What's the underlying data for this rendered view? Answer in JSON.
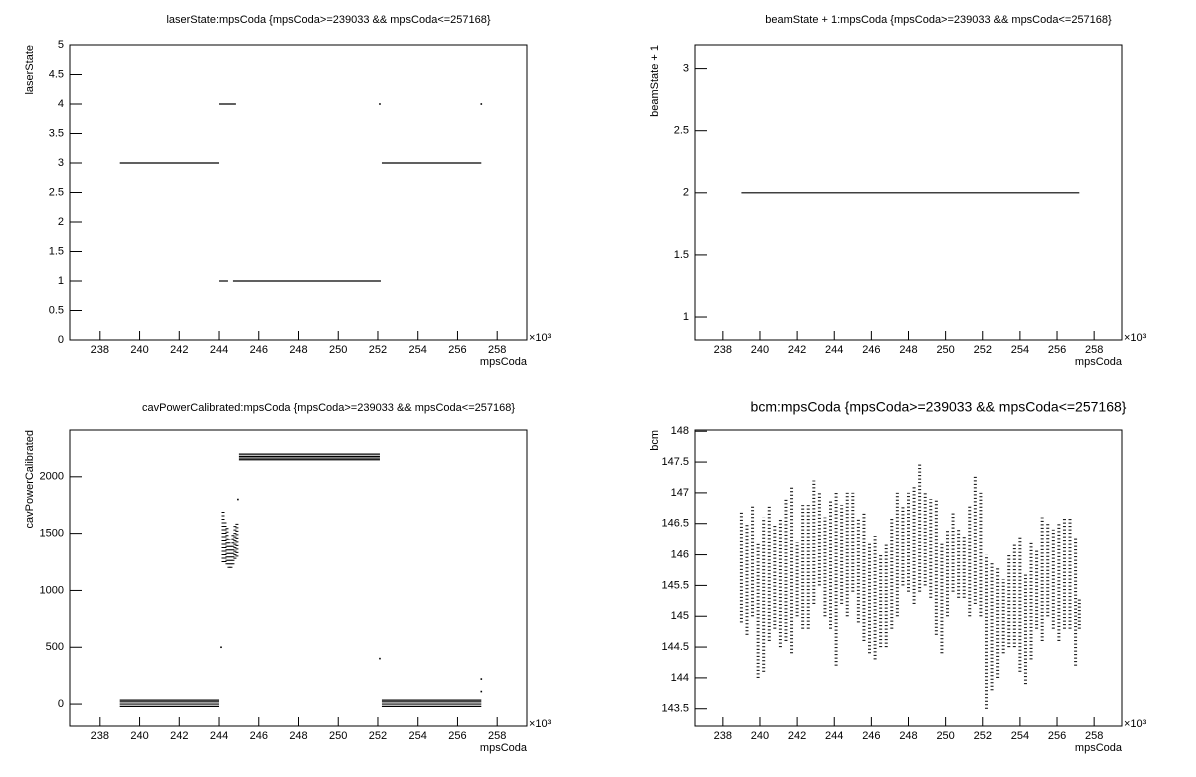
{
  "chart_data": [
    {
      "type": "scatter",
      "title": "laserState:mpsCoda {mpsCoda>=239033 && mpsCoda<=257168}",
      "x_label": "mpsCoda",
      "y_label": "laserState",
      "x_multiplier": "×10³",
      "color": "#000000",
      "xlim": [
        236.5,
        259.5
      ],
      "xticks": [
        238,
        240,
        242,
        244,
        246,
        248,
        250,
        252,
        254,
        256,
        258
      ],
      "ylim": [
        0,
        5
      ],
      "yticks": [
        0,
        0.5,
        1,
        1.5,
        2,
        2.5,
        3,
        3.5,
        4,
        4.5,
        5
      ],
      "runs": {
        "x_start": [
          239.0,
          244.0,
          244.0,
          244.7,
          252.2,
          252.1,
          257.2
        ],
        "x_end": [
          244.0,
          244.85,
          244.45,
          252.15,
          257.2,
          252.1,
          257.2
        ],
        "y": [
          3,
          4,
          1,
          1,
          3,
          4,
          4
        ]
      }
    },
    {
      "type": "scatter",
      "title": "beamState + 1:mpsCoda {mpsCoda>=239033 && mpsCoda<=257168}",
      "x_label": "mpsCoda",
      "y_label": "beamState + 1",
      "x_multiplier": "×10³",
      "color": "#000000",
      "xlim": [
        236.5,
        259.5
      ],
      "xticks": [
        238,
        240,
        242,
        244,
        246,
        248,
        250,
        252,
        254,
        256,
        258
      ],
      "ylim": [
        0.815,
        3.19
      ],
      "yticks": [
        1,
        1.5,
        2,
        2.5,
        3
      ],
      "runs": {
        "x_start": [
          239.0
        ],
        "x_end": [
          257.2
        ],
        "y": [
          2
        ]
      }
    },
    {
      "type": "scatter",
      "title": "cavPowerCalibrated:mpsCoda {mpsCoda>=239033 && mpsCoda<=257168}",
      "x_label": "mpsCoda",
      "y_label": "cavPowerCalibrated",
      "x_multiplier": "×10³",
      "color": "#000000",
      "xlim": [
        236.5,
        259.5
      ],
      "xticks": [
        238,
        240,
        242,
        244,
        246,
        248,
        250,
        252,
        254,
        256,
        258
      ],
      "ylim": [
        -193,
        2412
      ],
      "yticks": [
        0,
        500,
        1000,
        1500,
        2000
      ],
      "runs": {
        "x_start": [
          239.0,
          239.0,
          239.0,
          239.0,
          252.2,
          252.2,
          252.2,
          252.2,
          245.0,
          245.0,
          245.0,
          245.0,
          244.1,
          244.95,
          252.1,
          257.2,
          257.2
        ],
        "x_end": [
          244.0,
          244.0,
          244.0,
          244.0,
          257.2,
          257.2,
          257.2,
          257.2,
          252.1,
          252.1,
          252.1,
          252.1,
          244.1,
          244.95,
          252.1,
          257.2,
          257.2
        ],
        "y": [
          -20,
          0,
          20,
          35,
          -20,
          0,
          20,
          35,
          2150,
          2165,
          2180,
          2200,
          500,
          1800,
          400,
          220,
          110
        ]
      },
      "columns": {
        "x": [
          244.2,
          244.3,
          244.4,
          244.5,
          244.6,
          244.7,
          244.8,
          244.9
        ],
        "y_low": [
          1250,
          1250,
          1230,
          1200,
          1200,
          1230,
          1280,
          1300
        ],
        "y_high": [
          1700,
          1600,
          1550,
          1450,
          1400,
          1500,
          1580,
          1600
        ]
      }
    },
    {
      "type": "scatter",
      "title": "bcm:mpsCoda {mpsCoda>=239033 && mpsCoda<=257168}",
      "x_label": "mpsCoda",
      "y_label": "bcm",
      "x_multiplier": "×10³",
      "color": "#000000",
      "xlim": [
        236.5,
        259.5
      ],
      "xticks": [
        238,
        240,
        242,
        244,
        246,
        248,
        250,
        252,
        254,
        256,
        258
      ],
      "ylim": [
        143.22,
        148.02
      ],
      "yticks": [
        143.5,
        144,
        144.5,
        145,
        145.5,
        146,
        146.5,
        147,
        147.5,
        148
      ],
      "columns": {
        "x": [
          239.0,
          239.3,
          239.6,
          239.9,
          240.2,
          240.5,
          240.8,
          241.1,
          241.4,
          241.7,
          242.0,
          242.3,
          242.6,
          242.9,
          243.2,
          243.5,
          243.8,
          244.1,
          244.4,
          244.7,
          245.0,
          245.3,
          245.6,
          245.9,
          246.2,
          246.5,
          246.8,
          247.1,
          247.4,
          247.7,
          248.0,
          248.3,
          248.6,
          248.9,
          249.2,
          249.5,
          249.8,
          250.1,
          250.4,
          250.7,
          251.0,
          251.3,
          251.6,
          251.9,
          252.2,
          252.5,
          252.8,
          253.1,
          253.4,
          253.7,
          254.0,
          254.3,
          254.6,
          254.9,
          255.2,
          255.5,
          255.8,
          256.1,
          256.4,
          256.7,
          257.0,
          257.2
        ],
        "y_low": [
          144.9,
          144.7,
          145.0,
          144.0,
          144.1,
          144.6,
          144.8,
          144.5,
          144.6,
          144.4,
          145.0,
          144.8,
          144.8,
          145.2,
          145.5,
          145.0,
          144.8,
          144.2,
          145.2,
          145.0,
          145.4,
          144.9,
          144.6,
          144.4,
          144.3,
          144.5,
          144.5,
          144.8,
          145.0,
          145.5,
          145.4,
          145.2,
          145.4,
          145.5,
          145.3,
          144.7,
          144.4,
          145.0,
          145.4,
          145.3,
          145.3,
          145.0,
          145.2,
          145.0,
          143.5,
          143.8,
          144.0,
          144.4,
          144.5,
          144.5,
          144.1,
          143.9,
          144.3,
          144.8,
          144.6,
          145.0,
          144.8,
          144.6,
          144.8,
          144.8,
          144.2,
          144.8
        ],
        "y_high": [
          146.7,
          146.5,
          146.8,
          146.2,
          146.6,
          146.8,
          146.5,
          146.6,
          146.9,
          147.1,
          146.2,
          146.8,
          146.8,
          147.2,
          147.0,
          146.6,
          146.9,
          147.0,
          146.8,
          147.0,
          147.0,
          146.6,
          146.7,
          146.2,
          146.3,
          146.0,
          146.2,
          146.6,
          147.0,
          146.8,
          147.0,
          147.1,
          147.5,
          147.0,
          146.9,
          146.9,
          146.2,
          146.4,
          146.7,
          146.4,
          146.3,
          146.8,
          147.3,
          147.0,
          146.0,
          145.9,
          145.8,
          145.6,
          146.0,
          146.2,
          146.3,
          145.7,
          146.2,
          146.1,
          146.6,
          146.5,
          146.4,
          146.5,
          146.6,
          146.6,
          146.3,
          145.3
        ]
      }
    }
  ]
}
